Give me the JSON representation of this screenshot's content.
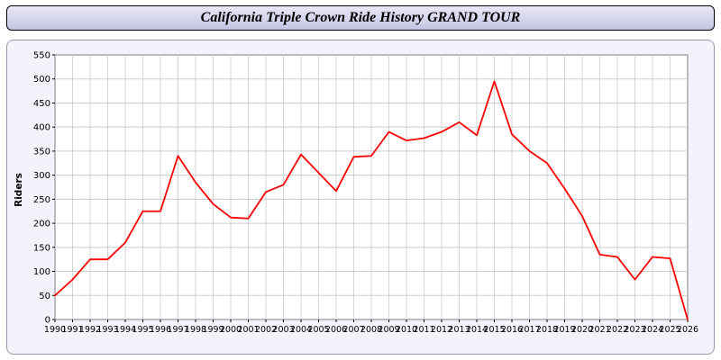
{
  "title_bar": {
    "title": "California Triple Crown Ride History GRAND TOUR"
  },
  "chart_data": {
    "type": "line",
    "title": "California Triple Crown Ride History GRAND TOUR",
    "xlabel": "",
    "ylabel": "Riders",
    "ylim": [
      0,
      550
    ],
    "ytick_step": 50,
    "grid": true,
    "legend_position": "none",
    "plot_background": "#ffffff",
    "panel_background": "#f3f3fb",
    "line_color": "#ff0000",
    "categories": [
      "1990",
      "1991",
      "1992",
      "1993",
      "1994",
      "1995",
      "1996",
      "1997",
      "1998",
      "1999",
      "2000",
      "2001",
      "2002",
      "2003",
      "2004",
      "2005",
      "2006",
      "2007",
      "2008",
      "2009",
      "2010",
      "2011",
      "2012",
      "2013",
      "2014",
      "2015",
      "2016",
      "2017",
      "2018",
      "2019",
      "2020",
      "2021",
      "2022",
      "2023",
      "2024",
      "2025",
      "2026"
    ],
    "series": [
      {
        "name": "Riders",
        "color": "#ff0000",
        "values": [
          50,
          83,
          125,
          125,
          160,
          225,
          225,
          340,
          285,
          240,
          212,
          210,
          265,
          280,
          343,
          305,
          267,
          338,
          340,
          390,
          372,
          377,
          390,
          410,
          383,
          495,
          385,
          350,
          325,
          272,
          215,
          135,
          130,
          83,
          130,
          127,
          0
        ]
      }
    ]
  }
}
